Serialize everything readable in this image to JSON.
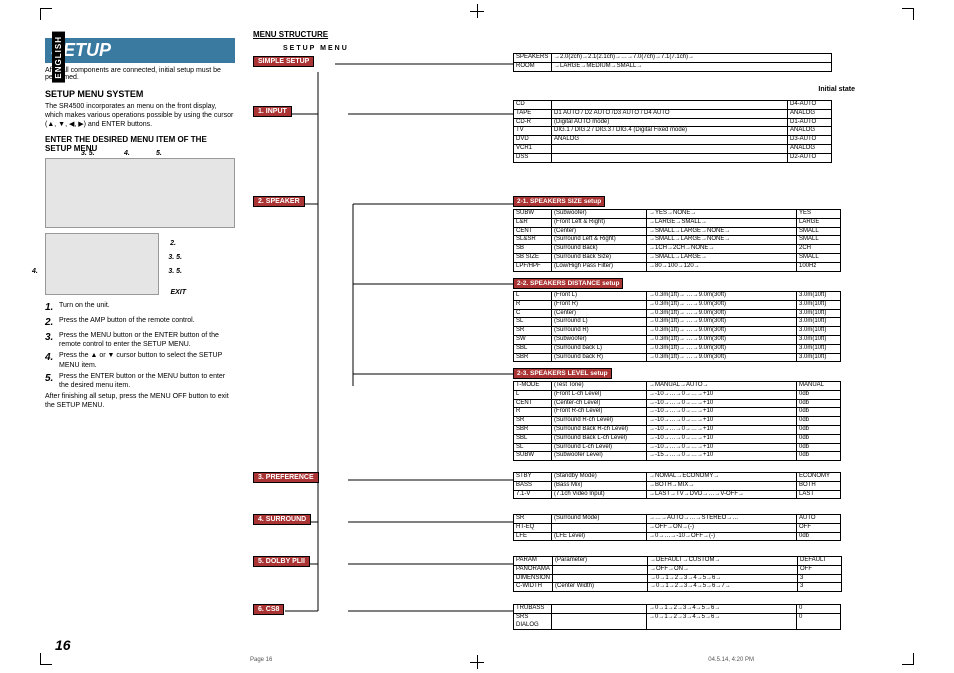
{
  "lang_tab": "ENGLISH",
  "title": "SETUP",
  "intro": "After all components are connected, initial setup must be performed.",
  "h2": "SETUP MENU SYSTEM",
  "para1": "The SR4500 incorporates an menu on the front display, which makes various operations possible by using the cursor (▲, ▼, ◀, ▶) and ENTER buttons.",
  "h3": "ENTER THE DESIRED MENU ITEM OF THE SETUP MENU",
  "callouts1": {
    "a": "3. 5.",
    "b": "4.",
    "c": "5."
  },
  "callouts2": {
    "a": "2.",
    "b": "3. 5.",
    "c": "4.",
    "d": "3. 5.",
    "exit": "EXIT"
  },
  "steps": [
    {
      "n": "1.",
      "t": "Turn on the unit."
    },
    {
      "n": "2.",
      "t": "Press the AMP button of the remote control."
    },
    {
      "n": "3.",
      "t": "Press the MENU button or the ENTER button of the remote control to enter the SETUP MENU."
    },
    {
      "n": "4.",
      "t": "Press the ▲ or ▼ cursor button to select the SETUP MENU item."
    },
    {
      "n": "5.",
      "t": "Press the ENTER button or the MENU button to enter the desired menu item."
    }
  ],
  "after_steps": "After finishing all setup, press the MENU OFF button to exit the SETUP MENU.",
  "page_num": "16",
  "footer_left": "Page 16",
  "footer_right": "04.5.14, 4:20 PM",
  "menu_structure": "MENU STRUCTURE",
  "setup_menu_label": "SETUP MENU",
  "initial_state": "Initial state",
  "simple_setup": "SIMPLE SETUP",
  "menu_nodes": [
    "1. INPUT",
    "2. SPEAKER",
    "3. PREFERENCE",
    "4. SURROUND",
    "5. DOLBY PLII",
    "6. CS8"
  ],
  "sub_nodes": [
    "2-1. SPEAKERS SIZE setup",
    "2-2. SPEAKERS DISTANCE setup",
    "2-3. SPEAKERS LEVEL setup"
  ],
  "table_simple": [
    [
      "SPEAKERS",
      "→2.0(2ch)→2.1(2.1ch)→…→7.0(7ch)→7.1(7.1ch)→"
    ],
    [
      "ROOM",
      "→LARGE→MEDIUM→SMALL→"
    ]
  ],
  "table_input": [
    [
      "CD",
      "",
      "D4-AUTO"
    ],
    [
      "TAPE",
      "D1 AUTO / D2 AUTO /D3 AUTO / D4 AUTO",
      "ANALOG"
    ],
    [
      "CD-R",
      "(Digital AUTO mode)",
      "D1-AUTO"
    ],
    [
      "TV",
      "DIG.1 / DIG.2 / DIG.3 / DIG.4 (Digital Fixed mode)",
      "ANALOG"
    ],
    [
      "DVD",
      "ANALOG",
      "D3-AUTO"
    ],
    [
      "VCR1",
      "",
      "ANALOG"
    ],
    [
      "DSS",
      "",
      "D2-AUTO"
    ]
  ],
  "table_size": [
    [
      "SUBW",
      "(Subwoofer)",
      "→YES→NONE→",
      "YES"
    ],
    [
      "L&R",
      "(Front Left & Right)",
      "→LARGE→SMALL→",
      "LARGE"
    ],
    [
      "CENT",
      "(Center)",
      "→SMALL→LARGE→NONE→",
      "SMALL"
    ],
    [
      "SL&SR",
      "(Surround Left & Right)",
      "→SMALL→LARGE→NONE→",
      "SMALL"
    ],
    [
      "SB",
      "(Surround Back)",
      "→1CH→2CH→NONE→",
      "2CH"
    ],
    [
      "SB SIZE",
      "(Surround Back Size)",
      "→SMALL→LARGE→",
      "SMALL"
    ],
    [
      "LPF/HPF",
      "(Low/High Pass Filter)",
      "→80→100→120→",
      "100Hz"
    ]
  ],
  "table_dist": [
    [
      "L",
      "(Front L)",
      "→0.3m(1ft)→ …→9.0m(30ft)",
      "3.0m(10ft)"
    ],
    [
      "R",
      "(Front R)",
      "→0.3m(1ft)→ …→9.0m(30ft)",
      "3.0m(10ft)"
    ],
    [
      "C",
      "(Center)",
      "→0.3m(1ft)→ …→9.0m(30ft)",
      "3.0m(10ft)"
    ],
    [
      "SL",
      "(Surround L)",
      "→0.3m(1ft)→ …→9.0m(30ft)",
      "3.0m(10ft)"
    ],
    [
      "SR",
      "(Surround R)",
      "→0.3m(1ft)→ …→9.0m(30ft)",
      "3.0m(10ft)"
    ],
    [
      "SW",
      "(Subwoofer)",
      "→0.3m(1ft)→ …→9.0m(30ft)",
      "3.0m(10ft)"
    ],
    [
      "SBL",
      "(Surround back L)",
      "→0.3m(1ft)→ …→9.0m(30ft)",
      "3.0m(10ft)"
    ],
    [
      "SBR",
      "(Surround back R)",
      "→0.3m(1ft)→ …→9.0m(30ft)",
      "3.0m(10ft)"
    ]
  ],
  "table_level": [
    [
      "T-MODE",
      "(Test Tone)",
      "→MANUAL→AUTO→",
      "MANUAL"
    ],
    [
      "L",
      "(Front L-ch Level)",
      "→-10→…→0→…→+10",
      "0db"
    ],
    [
      "CENT",
      "(Center-ch Level)",
      "→-10→…→0→…→+10",
      "0db"
    ],
    [
      "R",
      "(Front R-ch Level)",
      "→-10→…→0→…→+10",
      "0db"
    ],
    [
      "SR",
      "(Surround R-ch Level)",
      "→-10→…→0→…→+10",
      "0db"
    ],
    [
      "SBR",
      "(Surround Back R-ch Level)",
      "→-10→…→0→…→+10",
      "0db"
    ],
    [
      "SBL",
      "(Surround Back L-ch Level)",
      "→-10→…→0→…→+10",
      "0db"
    ],
    [
      "SL",
      "(Surround L-ch Level)",
      "→-10→…→0→…→+10",
      "0db"
    ],
    [
      "SUBW",
      "(Subwoofer Level)",
      "→-15→…→0→…→+10",
      "0db"
    ]
  ],
  "table_pref": [
    [
      "STBY",
      "(Standby Mode)",
      "→NOMAL→ECONOMY→",
      "ECONOMY"
    ],
    [
      "BASS",
      "(Bass Mix)",
      "→BOTH→MIX→",
      "BOTH"
    ],
    [
      "7.1-V",
      "(7.1ch Video Input)",
      "→LAST→TV→DVD→…→V-OFF→",
      "LAST"
    ]
  ],
  "table_surr": [
    [
      "SR",
      "(Surround Mode)",
      "→…→AUTO→…→STEREO→…",
      "AUTO"
    ],
    [
      "HT-EQ",
      "",
      "→OFF→ON→(-)",
      "OFF"
    ],
    [
      "LFE",
      "(LFE Level)",
      "→0→…→-10→OFF→(-)",
      "0db"
    ]
  ],
  "table_dolby": [
    [
      "PARAM",
      "(Parameter)",
      "→DEFAULT→CUSTOM→",
      "DEFAULT"
    ],
    [
      "PANORAMA",
      "",
      "→OFF→ON→",
      "OFF"
    ],
    [
      "DIMENSION",
      "",
      "→0→1→2→3→4→5→6→",
      "3"
    ],
    [
      "C-WIDTH",
      "(Center Width)",
      "→0→1→2→3→4→5→6→7→",
      "3"
    ]
  ],
  "table_cs8": [
    [
      "TRUBASS",
      "",
      "→0→1→2→3→4→5→6→",
      "0"
    ],
    [
      "SRS DIALOG",
      "",
      "→0→1→2→3→4→5→6→",
      "0"
    ]
  ]
}
